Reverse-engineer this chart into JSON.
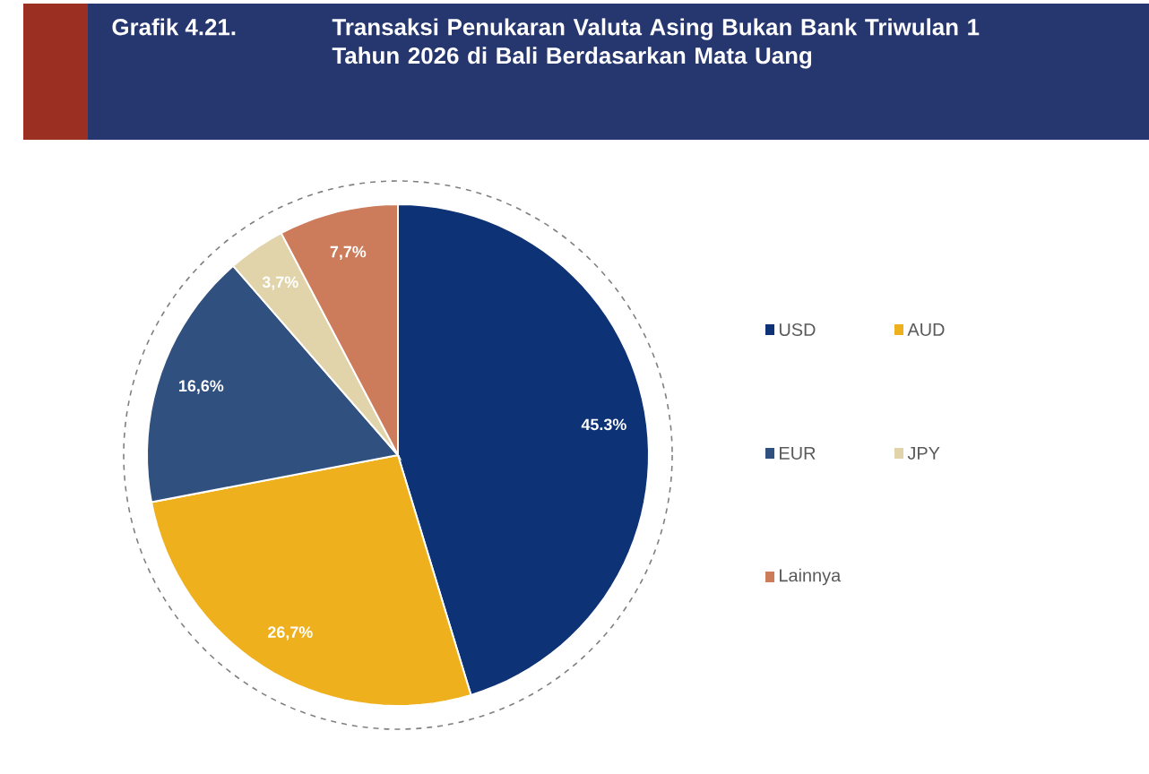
{
  "chart_data": {
    "type": "pie",
    "title": "Transaksi Penukaran Valuta Asing Bukan Bank Triwulan 1 Tahun 2026 di Bali Berdasarkan Mata Uang",
    "annotations": [
      "Grafik 4.21."
    ],
    "categories": [
      "USD",
      "AUD",
      "EUR",
      "JPY",
      "Lainnya"
    ],
    "values": [
      45.3,
      26.7,
      16.6,
      3.7,
      7.7
    ],
    "value_labels": [
      "45.3%",
      "26,7%",
      "16,6%",
      "3,7%",
      "7,7%"
    ],
    "colors": [
      "#0d3275",
      "#eeb01c",
      "#30507f",
      "#e2d4aa",
      "#cc7b5b"
    ],
    "legend": "right"
  }
}
